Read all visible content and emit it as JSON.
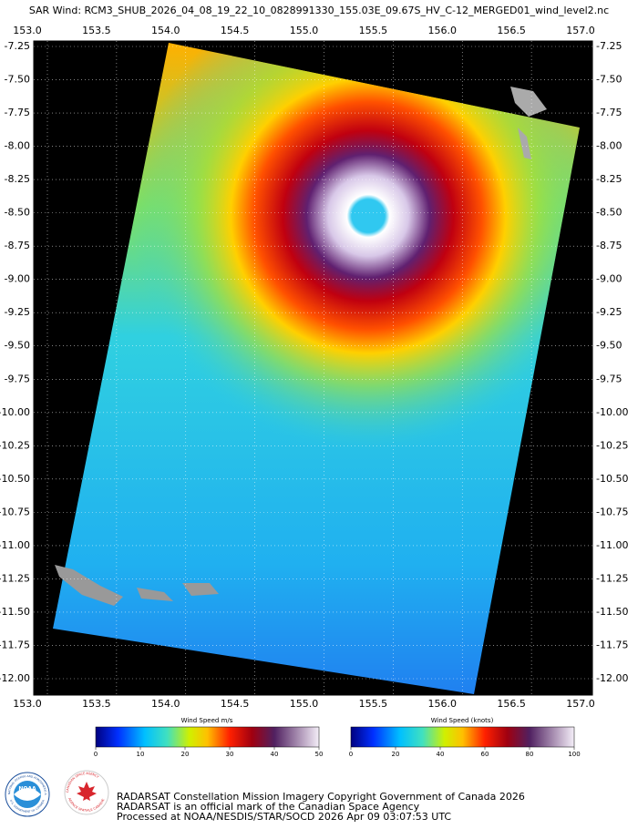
{
  "title": "SAR Wind: RCM3_SHUB_2026_04_08_19_22_10_0828991330_155.03E_09.67S_HV_C-12_MERGED01_wind_level2.nc",
  "map": {
    "lon_ticks": [
      {
        "value": 153,
        "label": "153.0"
      },
      153.5,
      {
        "value": 154,
        "label": "154.0"
      },
      154.5,
      {
        "value": 155,
        "label": "155.0"
      },
      155.5,
      {
        "value": 156,
        "label": "156.0"
      },
      156.5,
      {
        "value": 157,
        "label": "157.0"
      }
    ],
    "lat_ticks": [
      -7.25,
      {
        "value": -7.5,
        "label": "-7.50"
      },
      -7.75,
      {
        "value": -8,
        "label": "-8.00"
      },
      -8.25,
      {
        "value": -8.5,
        "label": "-8.50"
      },
      -8.75,
      {
        "value": -9,
        "label": "-9.00"
      },
      -9.25,
      {
        "value": -9.5,
        "label": "-9.50"
      },
      -9.75,
      {
        "value": -10,
        "label": "-10.00"
      },
      -10.25,
      {
        "value": -10.5,
        "label": "-10.50"
      },
      -10.75,
      {
        "value": -11,
        "label": "-11.00"
      },
      -11.25,
      {
        "value": -11.5,
        "label": "-11.50"
      },
      -11.75,
      {
        "value": -12,
        "label": "-12.00"
      }
    ]
  },
  "colorbars": [
    {
      "label": "Wind Speed m/s",
      "ticks": [
        0,
        10,
        20,
        30,
        40,
        50
      ]
    },
    {
      "label": "Wind Speed (knots)",
      "ticks": [
        0,
        20,
        40,
        60,
        80,
        100
      ]
    }
  ],
  "logos": {
    "noaa": "NOAA",
    "noaa_ring_top": "NATIONAL OCEANIC AND ATMOSPHERIC ADMINISTRATION",
    "noaa_ring_bottom": "U.S. DEPARTMENT OF COMMERCE",
    "csa_ring_top": "CANADIAN SPACE AGENCY",
    "csa_ring_bottom": "AGENCE SPATIALE CANADIENNE"
  },
  "footer": [
    "RADARSAT Constellation Mission Imagery Copyright Government of Canada 2026",
    "RADARSAT is an official mark of the Canadian Space Agency",
    "Processed at NOAA/NESDIS/STAR/SOCD 2026 Apr 09 03:07:53 UTC"
  ]
}
